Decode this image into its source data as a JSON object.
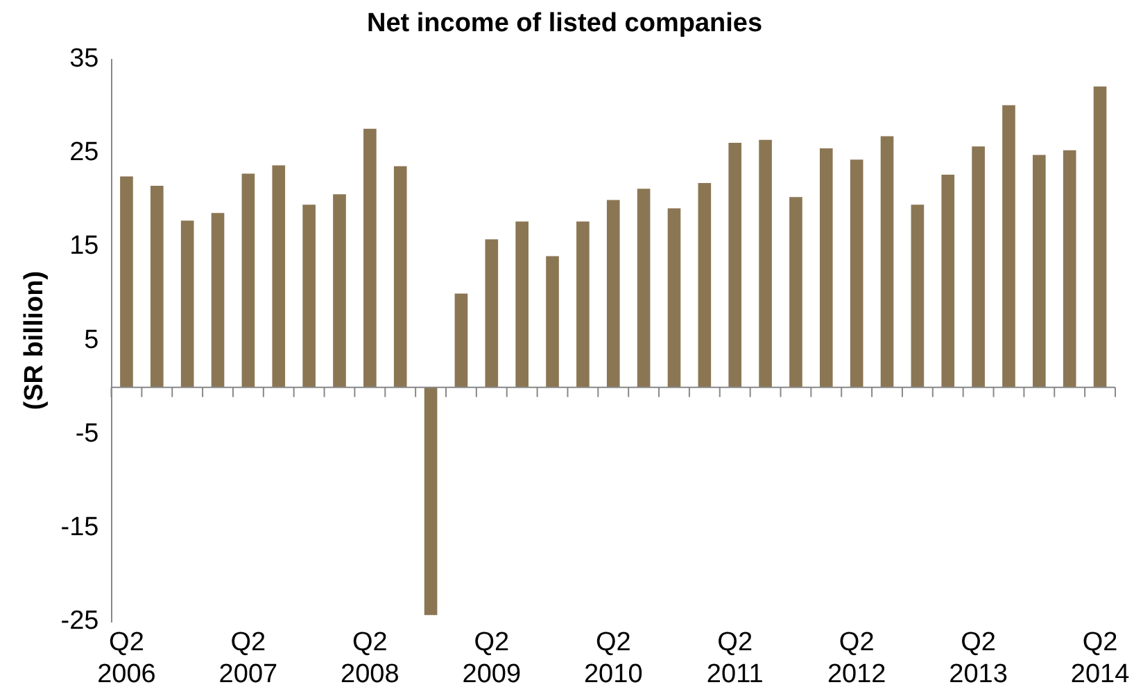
{
  "chart_data": {
    "type": "bar",
    "title": "Net income of listed companies",
    "ylabel": "(SR billion)",
    "categories": [
      "Q2 2006",
      null,
      null,
      null,
      "Q2 2007",
      null,
      null,
      null,
      "Q2 2008",
      null,
      null,
      null,
      "Q2 2009",
      null,
      null,
      null,
      "Q2 2010",
      null,
      null,
      null,
      "Q2 2011",
      null,
      null,
      null,
      "Q2 2012",
      null,
      null,
      null,
      "Q2 2013",
      null,
      null,
      null,
      "Q2 2014"
    ],
    "values": [
      22.5,
      21.5,
      17.8,
      18.6,
      22.8,
      23.7,
      19.5,
      20.6,
      27.6,
      23.6,
      -24.3,
      10,
      15.8,
      17.7,
      14,
      17.7,
      20,
      21.2,
      19.1,
      21.8,
      26.1,
      26.4,
      20.3,
      25.5,
      24.3,
      26.8,
      19.5,
      22.7,
      25.7,
      30.1,
      24.8,
      25.3,
      32.1
    ],
    "color": "#8b7654",
    "ylim": [
      -25,
      35
    ],
    "yticks": [
      -25,
      -15,
      -5,
      5,
      15,
      25,
      35
    ],
    "grid": false,
    "legend": false
  }
}
